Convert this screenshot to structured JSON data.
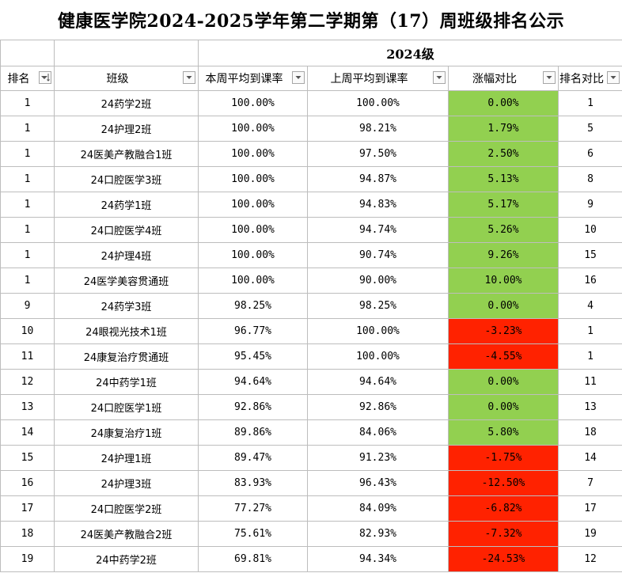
{
  "title": "健康医学院2024-2025学年第二学期第（17）周班级排名公示",
  "grade": "2024级",
  "headers": {
    "rank": "排名",
    "class": "班级",
    "this_week": "本周平均到课率",
    "last_week": "上周平均到课率",
    "change": "涨幅对比",
    "rank_compare": "排名对比"
  },
  "colors": {
    "positive": "#92d050",
    "negative": "#ff2200",
    "grid": "#bdbdbd"
  },
  "rows": [
    {
      "rank": "1",
      "class": "24药学2班",
      "this_week": "100.00%",
      "last_week": "100.00%",
      "change": "0.00%",
      "rank_compare": "1",
      "trend": "pos"
    },
    {
      "rank": "1",
      "class": "24护理2班",
      "this_week": "100.00%",
      "last_week": "98.21%",
      "change": "1.79%",
      "rank_compare": "5",
      "trend": "pos"
    },
    {
      "rank": "1",
      "class": "24医美产教融合1班",
      "this_week": "100.00%",
      "last_week": "97.50%",
      "change": "2.50%",
      "rank_compare": "6",
      "trend": "pos"
    },
    {
      "rank": "1",
      "class": "24口腔医学3班",
      "this_week": "100.00%",
      "last_week": "94.87%",
      "change": "5.13%",
      "rank_compare": "8",
      "trend": "pos"
    },
    {
      "rank": "1",
      "class": "24药学1班",
      "this_week": "100.00%",
      "last_week": "94.83%",
      "change": "5.17%",
      "rank_compare": "9",
      "trend": "pos"
    },
    {
      "rank": "1",
      "class": "24口腔医学4班",
      "this_week": "100.00%",
      "last_week": "94.74%",
      "change": "5.26%",
      "rank_compare": "10",
      "trend": "pos"
    },
    {
      "rank": "1",
      "class": "24护理4班",
      "this_week": "100.00%",
      "last_week": "90.74%",
      "change": "9.26%",
      "rank_compare": "15",
      "trend": "pos"
    },
    {
      "rank": "1",
      "class": "24医学美容贯通班",
      "this_week": "100.00%",
      "last_week": "90.00%",
      "change": "10.00%",
      "rank_compare": "16",
      "trend": "pos"
    },
    {
      "rank": "9",
      "class": "24药学3班",
      "this_week": "98.25%",
      "last_week": "98.25%",
      "change": "0.00%",
      "rank_compare": "4",
      "trend": "pos"
    },
    {
      "rank": "10",
      "class": "24眼视光技术1班",
      "this_week": "96.77%",
      "last_week": "100.00%",
      "change": "-3.23%",
      "rank_compare": "1",
      "trend": "neg"
    },
    {
      "rank": "11",
      "class": "24康复治疗贯通班",
      "this_week": "95.45%",
      "last_week": "100.00%",
      "change": "-4.55%",
      "rank_compare": "1",
      "trend": "neg"
    },
    {
      "rank": "12",
      "class": "24中药学1班",
      "this_week": "94.64%",
      "last_week": "94.64%",
      "change": "0.00%",
      "rank_compare": "11",
      "trend": "pos"
    },
    {
      "rank": "13",
      "class": "24口腔医学1班",
      "this_week": "92.86%",
      "last_week": "92.86%",
      "change": "0.00%",
      "rank_compare": "13",
      "trend": "pos"
    },
    {
      "rank": "14",
      "class": "24康复治疗1班",
      "this_week": "89.86%",
      "last_week": "84.06%",
      "change": "5.80%",
      "rank_compare": "18",
      "trend": "pos"
    },
    {
      "rank": "15",
      "class": "24护理1班",
      "this_week": "89.47%",
      "last_week": "91.23%",
      "change": "-1.75%",
      "rank_compare": "14",
      "trend": "neg"
    },
    {
      "rank": "16",
      "class": "24护理3班",
      "this_week": "83.93%",
      "last_week": "96.43%",
      "change": "-12.50%",
      "rank_compare": "7",
      "trend": "neg"
    },
    {
      "rank": "17",
      "class": "24口腔医学2班",
      "this_week": "77.27%",
      "last_week": "84.09%",
      "change": "-6.82%",
      "rank_compare": "17",
      "trend": "neg"
    },
    {
      "rank": "18",
      "class": "24医美产教融合2班",
      "this_week": "75.61%",
      "last_week": "82.93%",
      "change": "-7.32%",
      "rank_compare": "19",
      "trend": "neg"
    },
    {
      "rank": "19",
      "class": "24中药学2班",
      "this_week": "69.81%",
      "last_week": "94.34%",
      "change": "-24.53%",
      "rank_compare": "12",
      "trend": "neg"
    }
  ]
}
